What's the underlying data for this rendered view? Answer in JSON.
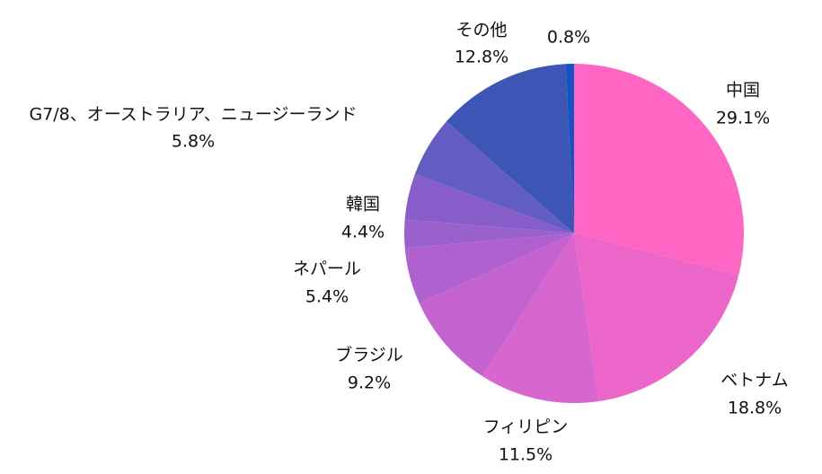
{
  "chart_data": {
    "type": "pie",
    "start_angle_deg": 0,
    "direction": "clockwise",
    "slices": [
      {
        "label": "中国",
        "value": 29.1,
        "value_label": "29.1%",
        "color": "#FF66C4"
      },
      {
        "label": "ベトナム",
        "value": 18.8,
        "value_label": "18.8%",
        "color": "#EC66CA"
      },
      {
        "label": "フィリピン",
        "value": 11.5,
        "value_label": "11.5%",
        "color": "#D866CF"
      },
      {
        "label": "ブラジル",
        "value": 9.2,
        "value_label": "9.2%",
        "color": "#C462D0"
      },
      {
        "label": "ネパール",
        "value": 5.4,
        "value_label": "5.4%",
        "color": "#AE61CF"
      },
      {
        "label": "",
        "value": 2.7,
        "value_label": "",
        "color": "#9A60CC"
      },
      {
        "label": "韓国",
        "value": 4.4,
        "value_label": "4.4%",
        "color": "#875EC9"
      },
      {
        "label": "G7/8、オーストラリア、ニュージーランド",
        "value": 5.8,
        "value_label": "5.8%",
        "color": "#625CC3"
      },
      {
        "label": "その他",
        "value": 12.8,
        "value_label": "12.8%",
        "color": "#3D56B5"
      },
      {
        "label": "",
        "value": 0.8,
        "value_label": "0.8%",
        "color": "#1255C0"
      }
    ]
  }
}
